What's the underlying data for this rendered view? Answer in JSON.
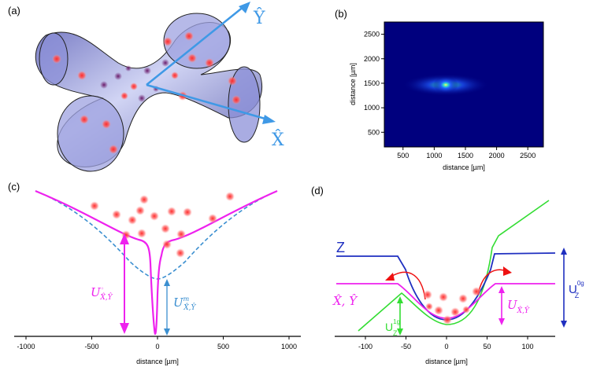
{
  "panels": {
    "a": {
      "tag": "(a)",
      "axis_y": "Ŷ",
      "axis_x": "X̂",
      "colors": {
        "surface": "#7f83cf",
        "arrow": "#3f99e6",
        "atom": "#ff3b3b"
      }
    },
    "b": {
      "tag": "(b)",
      "xlabel": "distance [µm]",
      "ylabel": "distance [µm]",
      "xticks": [
        "500",
        "1000",
        "1500",
        "2000",
        "2500"
      ],
      "yticks": [
        "500",
        "1000",
        "1500",
        "2000",
        "2500"
      ],
      "colors": {
        "background": "#00007e",
        "spot": "#ffff33"
      }
    },
    "c": {
      "tag": "(c)",
      "xlabel": "distance [µm]",
      "xticks": [
        "-1000",
        "-500",
        "0",
        "500",
        "1000"
      ],
      "label_total": "U",
      "label_total_sup": "◦",
      "label_total_sub": "X̂,Ŷ",
      "label_mag": "U",
      "label_mag_sup": "m",
      "label_mag_sub": "X̂,Ŷ",
      "colors": {
        "total": "#ee22ee",
        "magnetic": "#3b8fd0",
        "atom": "#ff4040"
      }
    },
    "d": {
      "tag": "(d)",
      "xlabel": "distance [µm]",
      "xticks": [
        "-100",
        "-50",
        "0",
        "50",
        "100"
      ],
      "label_z": "Z",
      "label_xy": "X̂, Ŷ",
      "label_uz1": "U",
      "label_uz1_sup": "1g",
      "label_uz1_sub": "Z",
      "label_uz0": "U",
      "label_uz0_sup": "0g",
      "label_uz0_sub": "Z",
      "label_uxy": "U",
      "label_uxy_sub": "X̂,Ŷ",
      "colors": {
        "z": "#1f2fc0",
        "xy": "#ee22ee",
        "gravity": "#33dd33",
        "arrow": "#ee1111",
        "atom": "#ff4040"
      }
    }
  }
}
